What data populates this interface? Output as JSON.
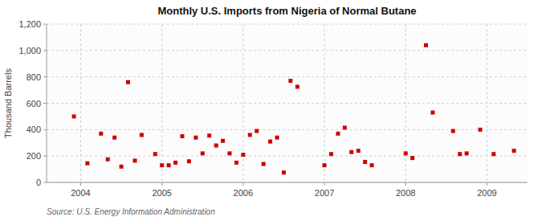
{
  "chart_data": {
    "type": "scatter",
    "title": "Monthly U.S. Imports from Nigeria of Normal Butane",
    "ylabel": "Thousand Barrels",
    "source": "Source: U.S. Energy Information Administration",
    "color": "#cc0000",
    "marker": "square",
    "grid": true,
    "xlim": [
      2003.58,
      2009.5
    ],
    "xticks": [
      2004,
      2005,
      2006,
      2007,
      2008,
      2009
    ],
    "ylim": [
      0,
      1200
    ],
    "yticks": [
      0,
      200,
      400,
      600,
      800,
      {
        "value": 1000,
        "label": "1,000"
      },
      {
        "value": 1200,
        "label": "1,200"
      }
    ],
    "x": [
      2003.917,
      2004.083,
      2004.25,
      2004.333,
      2004.417,
      2004.5,
      2004.583,
      2004.667,
      2004.75,
      2004.917,
      2005.0,
      2005.083,
      2005.167,
      2005.25,
      2005.333,
      2005.417,
      2005.5,
      2005.583,
      2005.667,
      2005.75,
      2005.833,
      2005.917,
      2006.0,
      2006.083,
      2006.167,
      2006.25,
      2006.333,
      2006.417,
      2006.5,
      2006.583,
      2006.667,
      2007.0,
      2007.083,
      2007.167,
      2007.25,
      2007.333,
      2007.417,
      2007.5,
      2007.583,
      2008.0,
      2008.083,
      2008.25,
      2008.333,
      2008.583,
      2008.667,
      2008.75,
      2008.917,
      2009.083,
      2009.333
    ],
    "values": [
      500,
      145,
      370,
      175,
      340,
      120,
      760,
      165,
      360,
      215,
      130,
      130,
      150,
      350,
      160,
      340,
      220,
      355,
      280,
      315,
      220,
      150,
      210,
      360,
      390,
      140,
      310,
      340,
      75,
      770,
      725,
      130,
      215,
      370,
      415,
      230,
      240,
      155,
      130,
      220,
      185,
      1040,
      530,
      390,
      215,
      220,
      400,
      215,
      240
    ]
  }
}
